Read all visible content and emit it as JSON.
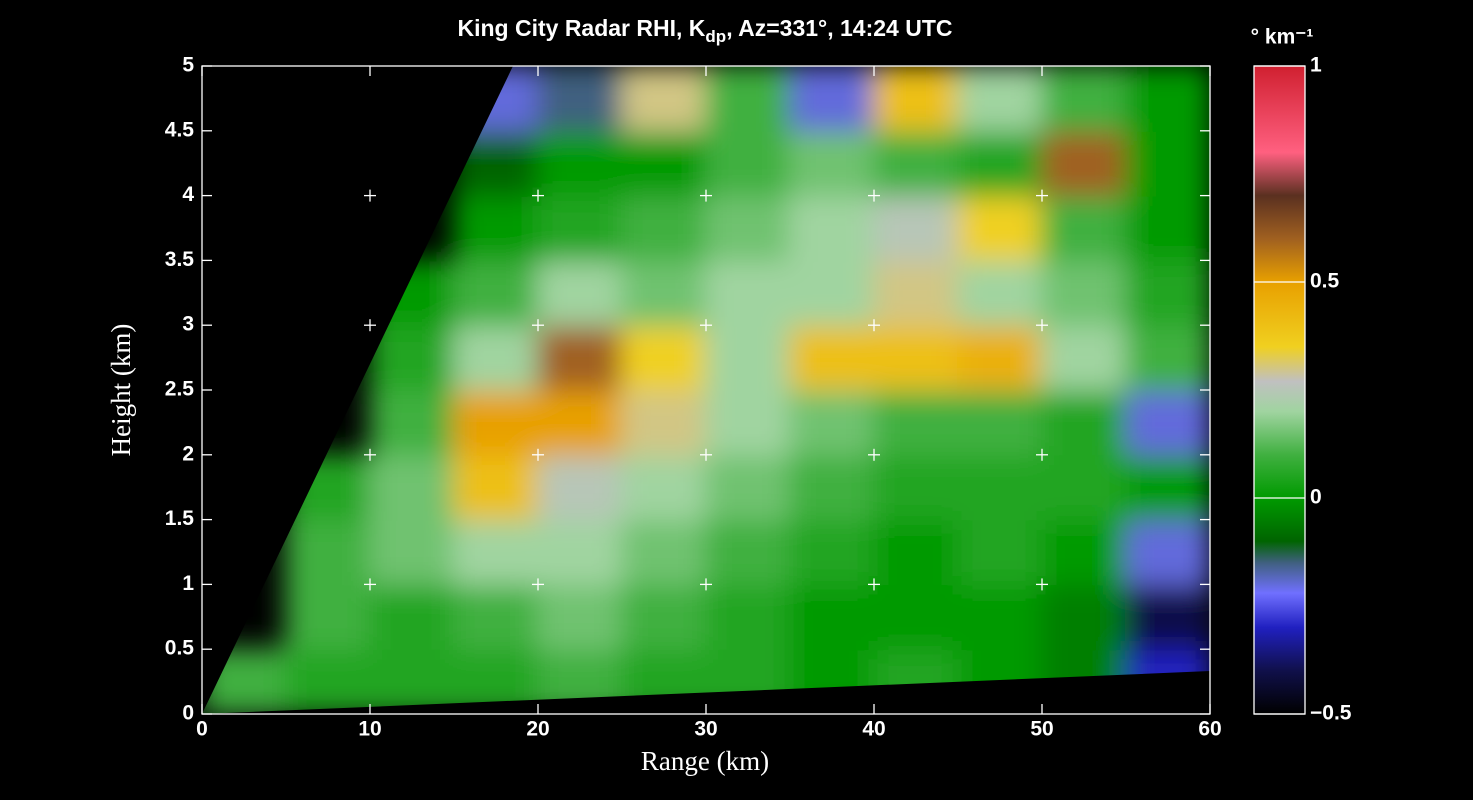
{
  "chart_data": {
    "type": "heatmap",
    "title": [
      "King City Radar RHI, K",
      "dp",
      ", Az=331°, 14:24 UTC"
    ],
    "xlabel": "Range (km)",
    "ylabel": "Height (km)",
    "colorbar_label": "° km⁻¹",
    "x": [
      2.5,
      7.5,
      12.5,
      17.5,
      22.5,
      27.5,
      32.5,
      37.5,
      42.5,
      47.5,
      52.5,
      57.5
    ],
    "y": [
      0.25,
      0.75,
      1.25,
      1.75,
      2.25,
      2.75,
      3.25,
      3.75,
      4.25,
      4.75
    ],
    "z": [
      [
        0.1,
        0.05,
        0.05,
        0.05,
        0.1,
        0.05,
        0.05,
        0.0,
        0.05,
        0.0,
        -0.05,
        -0.3
      ],
      [
        null,
        0.1,
        0.05,
        0.1,
        0.15,
        0.1,
        0.05,
        0.0,
        0.0,
        0.0,
        -0.05,
        -0.4
      ],
      [
        null,
        0.1,
        0.15,
        0.2,
        0.2,
        0.15,
        0.1,
        0.05,
        0.0,
        0.05,
        0.0,
        -0.2
      ],
      [
        null,
        0.05,
        0.15,
        0.4,
        0.25,
        0.2,
        0.15,
        0.1,
        0.05,
        0.05,
        0.05,
        0.0
      ],
      [
        null,
        null,
        0.1,
        0.5,
        0.5,
        0.3,
        0.2,
        0.15,
        0.1,
        0.1,
        0.05,
        -0.2
      ],
      [
        null,
        null,
        0.05,
        0.2,
        0.6,
        0.35,
        0.2,
        0.4,
        0.4,
        0.45,
        0.2,
        0.1
      ],
      [
        null,
        null,
        0.0,
        0.1,
        0.2,
        0.15,
        0.2,
        0.2,
        0.3,
        0.2,
        0.15,
        0.05
      ],
      [
        null,
        null,
        null,
        0.0,
        0.05,
        0.1,
        0.15,
        0.2,
        0.25,
        0.35,
        0.1,
        0.0
      ],
      [
        null,
        null,
        null,
        -0.1,
        0.0,
        0.0,
        0.1,
        0.15,
        0.1,
        0.05,
        0.6,
        0.0
      ],
      [
        null,
        null,
        null,
        -0.2,
        -0.15,
        0.3,
        0.1,
        -0.2,
        0.4,
        0.2,
        0.1,
        0.0
      ]
    ],
    "xlim": [
      0,
      60
    ],
    "xticks": [
      0,
      10,
      20,
      30,
      40,
      50,
      60
    ],
    "ylim": [
      0,
      5
    ],
    "yticks": [
      0,
      0.5,
      1,
      1.5,
      2,
      2.5,
      3,
      3.5,
      4,
      4.5,
      5
    ],
    "clim": [
      -0.5,
      1
    ],
    "cticks": [
      {
        "value": -0.5,
        "label": "−0.5"
      },
      0,
      0.5,
      1
    ],
    "colorscale": [
      [
        -0.5,
        "#000000"
      ],
      [
        -0.4,
        "#10104a"
      ],
      [
        -0.3,
        "#2020c0"
      ],
      [
        -0.22,
        "#7070ff"
      ],
      [
        -0.15,
        "#406080"
      ],
      [
        -0.1,
        "#006400"
      ],
      [
        0,
        "#009a00"
      ],
      [
        0.1,
        "#40b040"
      ],
      [
        0.2,
        "#a0d4a0"
      ],
      [
        0.27,
        "#c0c0c0"
      ],
      [
        0.35,
        "#f0d020"
      ],
      [
        0.5,
        "#e8a000"
      ],
      [
        0.6,
        "#a06020"
      ],
      [
        0.7,
        "#5a3020"
      ],
      [
        0.8,
        "#ff6080"
      ],
      [
        1,
        "#d02030"
      ]
    ],
    "grid": "crosses"
  }
}
